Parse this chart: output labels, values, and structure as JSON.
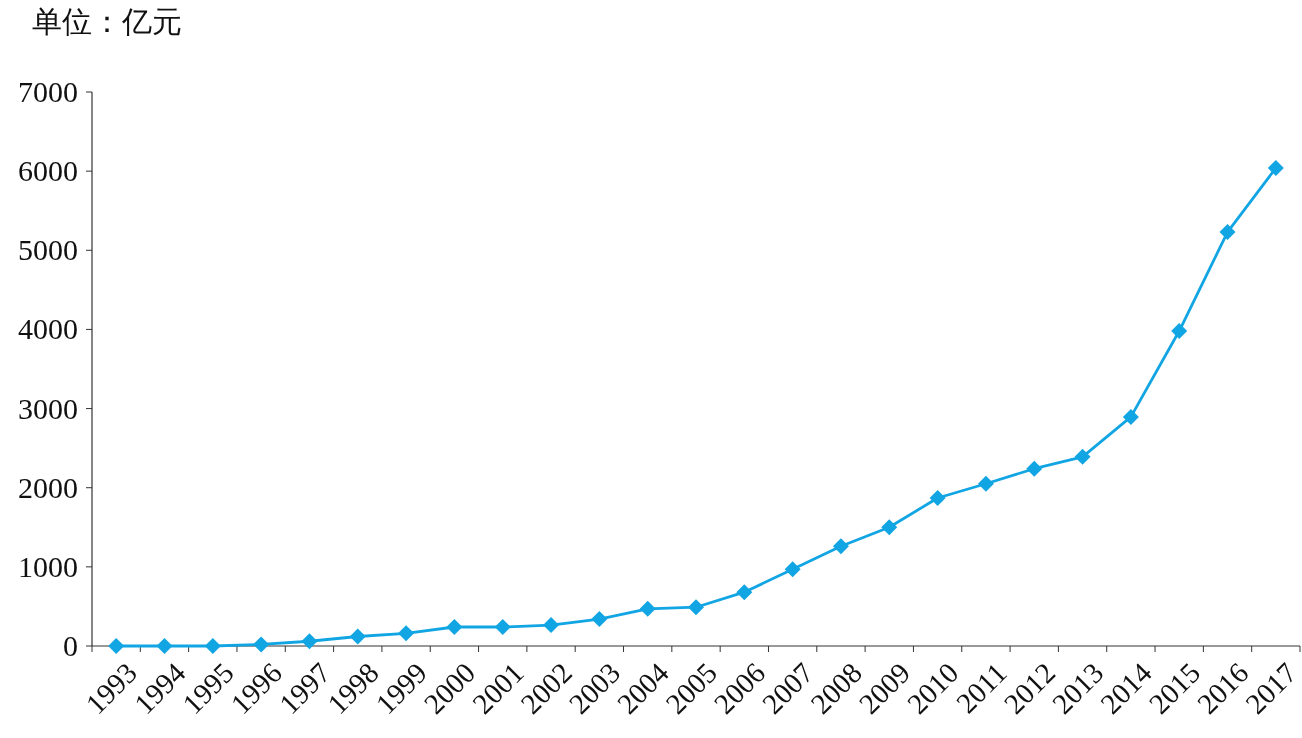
{
  "chart_data": {
    "type": "line",
    "ylabel": "单位：亿元",
    "categories": [
      "1993",
      "1994",
      "1995",
      "1996",
      "1997",
      "1998",
      "1999",
      "2000",
      "2001",
      "2002",
      "2003",
      "2004",
      "2005",
      "2006",
      "2007",
      "2008",
      "2009",
      "2010",
      "2011",
      "2012",
      "2013",
      "2014",
      "2015",
      "2016",
      "2017"
    ],
    "series": [
      {
        "color": "#12a5e3",
        "values": [
          0,
          0,
          0,
          20,
          60,
          120,
          160,
          240,
          240,
          265,
          340,
          470,
          490,
          680,
          970,
          1260,
          1500,
          1870,
          2050,
          2240,
          2390,
          2895,
          3980,
          5230,
          6040
        ]
      }
    ],
    "ylim": [
      0,
      7000
    ],
    "yticks": [
      0,
      1000,
      2000,
      3000,
      4000,
      5000,
      6000,
      7000
    ],
    "marker": "diamond",
    "line_style": "solid",
    "grid": false
  }
}
